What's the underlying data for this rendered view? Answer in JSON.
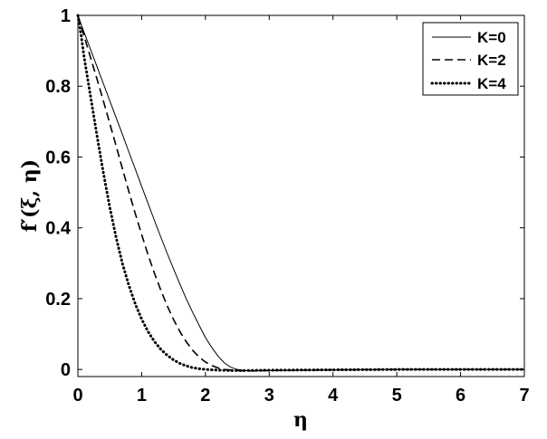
{
  "chart_data": {
    "type": "line",
    "xlabel": "η",
    "ylabel": "f′(ξ, η)",
    "xlim": [
      0,
      7
    ],
    "ylim": [
      -0.02,
      1
    ],
    "xticks": [
      "0",
      "1",
      "2",
      "3",
      "4",
      "5",
      "6",
      "7"
    ],
    "yticks": [
      "0",
      "0.2",
      "0.4",
      "0.6",
      "0.8",
      "1"
    ],
    "grid": false,
    "legend_position": "top-right",
    "series": [
      {
        "name": "K=0",
        "style": "solid",
        "x": [
          0,
          0.1,
          0.2,
          0.3,
          0.4,
          0.5,
          0.6,
          0.7,
          0.8,
          0.9,
          1.0,
          1.1,
          1.2,
          1.3,
          1.4,
          1.5,
          1.6,
          1.7,
          1.8,
          1.9,
          2.0,
          2.1,
          2.2,
          2.3,
          2.4,
          2.5,
          2.6,
          2.8,
          3.0,
          4.0,
          5.0,
          6.0,
          7.0
        ],
        "values": [
          1.0,
          0.951,
          0.903,
          0.855,
          0.807,
          0.759,
          0.711,
          0.663,
          0.614,
          0.566,
          0.517,
          0.469,
          0.421,
          0.374,
          0.328,
          0.284,
          0.241,
          0.199,
          0.161,
          0.125,
          0.09,
          0.062,
          0.037,
          0.018,
          0.006,
          0.0,
          -0.003,
          -0.004,
          -0.003,
          -0.001,
          0.0,
          0.0,
          0.0
        ]
      },
      {
        "name": "K=2",
        "style": "dashed",
        "x": [
          0,
          0.1,
          0.2,
          0.3,
          0.4,
          0.5,
          0.6,
          0.7,
          0.8,
          0.9,
          1.0,
          1.1,
          1.2,
          1.3,
          1.4,
          1.5,
          1.6,
          1.7,
          1.8,
          1.9,
          2.0,
          2.1,
          2.2,
          2.3,
          2.4,
          2.6,
          2.8,
          3.0,
          4.0,
          5.0,
          6.0,
          7.0
        ],
        "values": [
          1.0,
          0.94,
          0.88,
          0.82,
          0.758,
          0.695,
          0.631,
          0.566,
          0.502,
          0.44,
          0.381,
          0.324,
          0.272,
          0.224,
          0.18,
          0.141,
          0.107,
          0.078,
          0.054,
          0.035,
          0.021,
          0.011,
          0.004,
          0.0,
          -0.002,
          -0.004,
          -0.004,
          -0.003,
          -0.001,
          0.0,
          0.0,
          0.0
        ]
      },
      {
        "name": "K=4",
        "style": "dotted",
        "x": [
          0,
          0.05,
          0.1,
          0.2,
          0.3,
          0.4,
          0.5,
          0.6,
          0.7,
          0.8,
          0.9,
          1.0,
          1.1,
          1.2,
          1.3,
          1.4,
          1.5,
          1.6,
          1.7,
          1.8,
          1.9,
          2.0,
          2.2,
          2.4,
          2.6,
          3.0,
          4.0,
          5.0,
          6.0,
          7.0
        ],
        "values": [
          1.0,
          0.945,
          0.88,
          0.77,
          0.66,
          0.555,
          0.458,
          0.372,
          0.298,
          0.237,
          0.185,
          0.142,
          0.107,
          0.079,
          0.057,
          0.04,
          0.027,
          0.017,
          0.01,
          0.005,
          0.002,
          0.0,
          -0.002,
          -0.003,
          -0.003,
          -0.002,
          -0.001,
          0.0,
          0.0,
          0.0
        ]
      }
    ]
  }
}
